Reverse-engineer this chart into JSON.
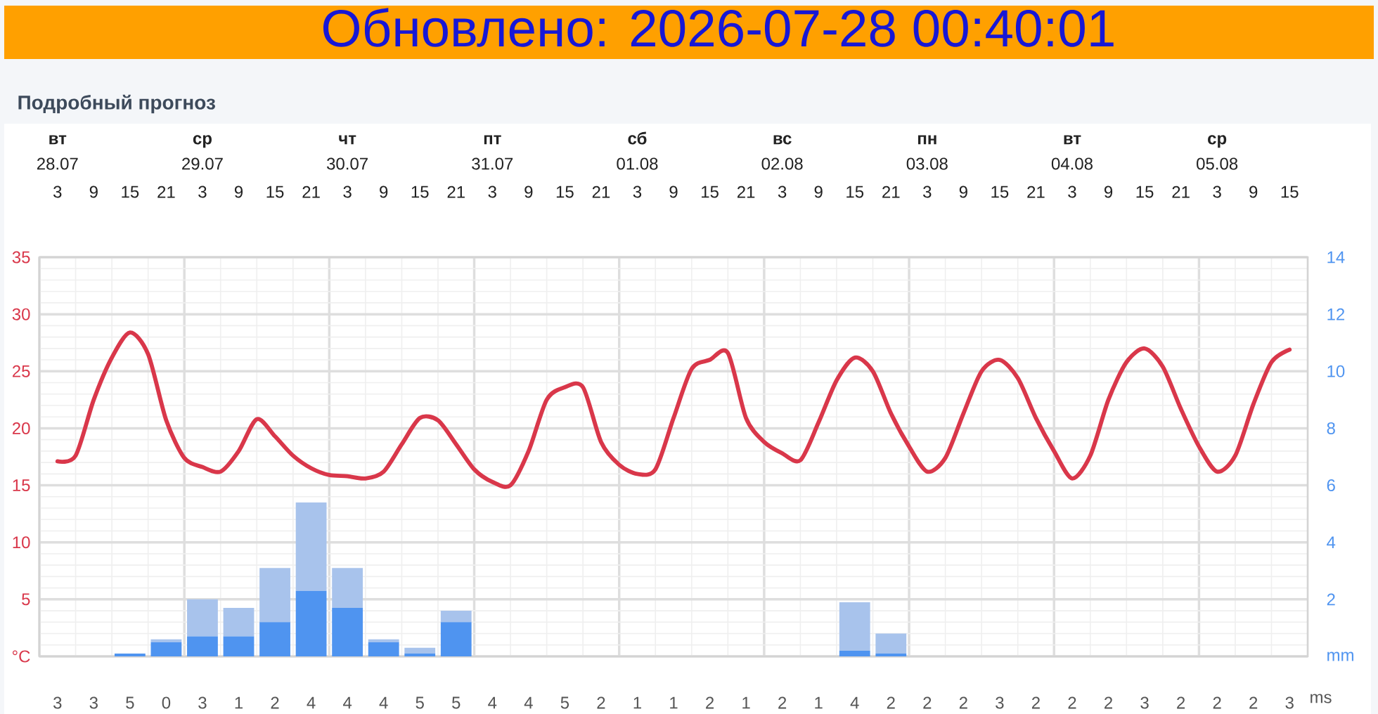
{
  "chart_data": [
    {
      "type": "line",
      "title": "Подробный прогноз",
      "annotations": [
        "Обновлено: 2026-07-28 00:40:01"
      ],
      "x": [
        "2026-07-28T03:00",
        "2026-07-28T09:00",
        "2026-07-28T15:00",
        "2026-07-28T21:00",
        "2026-07-29T03:00",
        "2026-07-29T09:00",
        "2026-07-29T15:00",
        "2026-07-29T21:00",
        "2026-07-30T03:00",
        "2026-07-30T09:00",
        "2026-07-30T15:00",
        "2026-07-30T21:00",
        "2026-07-31T03:00",
        "2026-07-31T09:00",
        "2026-07-31T15:00",
        "2026-07-31T21:00",
        "2026-08-01T03:00",
        "2026-08-01T09:00",
        "2026-08-01T15:00",
        "2026-08-01T21:00",
        "2026-08-02T03:00",
        "2026-08-02T09:00",
        "2026-08-02T15:00",
        "2026-08-02T21:00",
        "2026-08-03T03:00",
        "2026-08-03T09:00",
        "2026-08-03T15:00",
        "2026-08-03T21:00",
        "2026-08-04T03:00",
        "2026-08-04T09:00",
        "2026-08-04T15:00",
        "2026-08-04T21:00",
        "2026-08-05T03:00",
        "2026-08-05T09:00",
        "2026-08-05T15:00"
      ],
      "xlim": [
        "2026-07-28T00:00",
        "2026-08-05T18:00"
      ],
      "xticks": [
        {
          "value": "2026-07-28T03:00",
          "label": "3"
        },
        {
          "value": "2026-07-28T09:00",
          "label": "9"
        },
        {
          "value": "2026-07-28T15:00",
          "label": "15"
        },
        {
          "value": "2026-07-28T21:00",
          "label": "21"
        },
        {
          "value": "2026-07-29T03:00",
          "label": "3"
        },
        {
          "value": "2026-07-29T09:00",
          "label": "9"
        },
        {
          "value": "2026-07-29T15:00",
          "label": "15"
        },
        {
          "value": "2026-07-29T21:00",
          "label": "21"
        },
        {
          "value": "2026-07-30T03:00",
          "label": "3"
        },
        {
          "value": "2026-07-30T09:00",
          "label": "9"
        },
        {
          "value": "2026-07-30T15:00",
          "label": "15"
        },
        {
          "value": "2026-07-30T21:00",
          "label": "21"
        },
        {
          "value": "2026-07-31T03:00",
          "label": "3"
        },
        {
          "value": "2026-07-31T09:00",
          "label": "9"
        },
        {
          "value": "2026-07-31T15:00",
          "label": "15"
        },
        {
          "value": "2026-07-31T21:00",
          "label": "21"
        },
        {
          "value": "2026-08-01T03:00",
          "label": "3"
        },
        {
          "value": "2026-08-01T09:00",
          "label": "9"
        },
        {
          "value": "2026-08-01T15:00",
          "label": "15"
        },
        {
          "value": "2026-08-01T21:00",
          "label": "21"
        },
        {
          "value": "2026-08-02T03:00",
          "label": "3"
        },
        {
          "value": "2026-08-02T09:00",
          "label": "9"
        },
        {
          "value": "2026-08-02T15:00",
          "label": "15"
        },
        {
          "value": "2026-08-02T21:00",
          "label": "21"
        },
        {
          "value": "2026-08-03T03:00",
          "label": "3"
        },
        {
          "value": "2026-08-03T09:00",
          "label": "9"
        },
        {
          "value": "2026-08-03T15:00",
          "label": "15"
        },
        {
          "value": "2026-08-03T21:00",
          "label": "21"
        },
        {
          "value": "2026-08-04T03:00",
          "label": "3"
        },
        {
          "value": "2026-08-04T09:00",
          "label": "9"
        },
        {
          "value": "2026-08-04T15:00",
          "label": "15"
        },
        {
          "value": "2026-08-04T21:00",
          "label": "21"
        },
        {
          "value": "2026-08-05T03:00",
          "label": "3"
        },
        {
          "value": "2026-08-05T09:00",
          "label": "9"
        },
        {
          "value": "2026-08-05T15:00",
          "label": "15"
        }
      ],
      "x2lim": [
        "2026-07-28T00:00",
        "2026-08-05T18:00"
      ],
      "x2ticks": [
        {
          "value": "2026-07-28T03:00",
          "label": "**вт** 28.07"
        },
        {
          "value": "2026-07-29T03:00",
          "label": "**ср** 29.07"
        },
        {
          "value": "2026-07-30T03:00",
          "label": "**чт** 30.07"
        },
        {
          "value": "2026-07-31T03:00",
          "label": "**пт** 31.07"
        },
        {
          "value": "2026-08-01T03:00",
          "label": "**сб** 01.08"
        },
        {
          "value": "2026-08-02T03:00",
          "label": "**вс** 02.08"
        },
        {
          "value": "2026-08-03T03:00",
          "label": "**пн** 03.08"
        },
        {
          "value": "2026-08-04T03:00",
          "label": "**вт** 04.08"
        },
        {
          "value": "2026-08-05T03:00",
          "label": "**ср** 05.08"
        }
      ],
      "ylim": [
        0,
        35
      ],
      "yticks": [
        {
          "value": 0,
          "label": "°C"
        },
        5,
        10,
        15,
        20,
        25,
        30,
        35
      ],
      "y2lim": [
        0,
        14
      ],
      "y2ticks": [
        {
          "value": 0,
          "label": "mm"
        },
        2,
        4,
        6,
        8,
        10,
        12,
        14
      ],
      "stacked": true,
      "grid": true,
      "series": [
        {
          "type": "line",
          "color": "#d9374a",
          "x": [
            "2026-07-28T03:00",
            "2026-07-28T06:00",
            "2026-07-28T09:00",
            "2026-07-28T12:00",
            "2026-07-28T15:00",
            "2026-07-28T18:00",
            "2026-07-28T21:00",
            "2026-07-29T00:00",
            "2026-07-29T03:00",
            "2026-07-29T06:00",
            "2026-07-29T09:00",
            "2026-07-29T12:00",
            "2026-07-29T15:00",
            "2026-07-29T18:00",
            "2026-07-29T21:00",
            "2026-07-30T00:00",
            "2026-07-30T03:00",
            "2026-07-30T06:00",
            "2026-07-30T09:00",
            "2026-07-30T12:00",
            "2026-07-30T15:00",
            "2026-07-30T18:00",
            "2026-07-30T21:00",
            "2026-07-31T00:00",
            "2026-07-31T03:00",
            "2026-07-31T06:00",
            "2026-07-31T09:00",
            "2026-07-31T12:00",
            "2026-07-31T15:00",
            "2026-07-31T18:00",
            "2026-07-31T21:00",
            "2026-08-01T00:00",
            "2026-08-01T03:00",
            "2026-08-01T06:00",
            "2026-08-01T09:00",
            "2026-08-01T12:00",
            "2026-08-01T15:00",
            "2026-08-01T18:00",
            "2026-08-01T21:00",
            "2026-08-02T00:00",
            "2026-08-02T03:00",
            "2026-08-02T06:00",
            "2026-08-02T09:00",
            "2026-08-02T12:00",
            "2026-08-02T15:00",
            "2026-08-02T18:00",
            "2026-08-02T21:00",
            "2026-08-03T00:00",
            "2026-08-03T03:00",
            "2026-08-03T06:00",
            "2026-08-03T09:00",
            "2026-08-03T12:00",
            "2026-08-03T15:00",
            "2026-08-03T18:00",
            "2026-08-03T21:00",
            "2026-08-04T00:00",
            "2026-08-04T03:00",
            "2026-08-04T06:00",
            "2026-08-04T09:00",
            "2026-08-04T12:00",
            "2026-08-04T15:00",
            "2026-08-04T18:00",
            "2026-08-04T21:00",
            "2026-08-05T00:00",
            "2026-08-05T03:00",
            "2026-08-05T06:00",
            "2026-08-05T09:00",
            "2026-08-05T12:00",
            "2026-08-05T15:00"
          ],
          "values": [
            17.1,
            17.6,
            22.5,
            26.2,
            28.4,
            26.5,
            20.7,
            17.4,
            16.6,
            16.2,
            18.0,
            20.8,
            19.3,
            17.6,
            16.5,
            15.9,
            15.8,
            15.6,
            16.2,
            18.6,
            20.9,
            20.7,
            18.6,
            16.4,
            15.3,
            15.0,
            18.0,
            22.5,
            23.6,
            23.6,
            18.8,
            16.8,
            16.0,
            16.4,
            20.9,
            25.2,
            26.0,
            26.6,
            20.9,
            18.8,
            17.8,
            17.2,
            20.5,
            24.2,
            26.2,
            25.0,
            21.3,
            18.4,
            16.2,
            17.4,
            21.3,
            25.0,
            26.0,
            24.4,
            20.9,
            18.0,
            15.6,
            17.6,
            22.5,
            25.8,
            27.0,
            25.4,
            21.7,
            18.4,
            16.2,
            17.6,
            22.1,
            25.8,
            26.9
          ]
        },
        {
          "type": "bar",
          "axis": "y2",
          "color": "#4f94f0",
          "values": [
            0,
            0,
            0.1,
            0.5,
            0.7,
            0.7,
            1.2,
            2.3,
            1.7,
            0.5,
            0.1,
            1.2,
            0,
            0,
            0,
            0,
            0,
            0,
            0,
            0,
            0,
            0,
            0.2,
            0.1,
            0,
            0,
            0,
            0,
            0,
            0,
            0,
            0,
            0,
            0,
            0
          ]
        },
        {
          "type": "bar",
          "axis": "y2",
          "color": "#a8c3ec",
          "values": [
            0,
            0,
            0,
            0.1,
            1.3,
            1.0,
            1.9,
            3.1,
            1.4,
            0.1,
            0.2,
            0.4,
            0,
            0,
            0,
            0,
            0,
            0,
            0,
            0,
            0,
            0,
            1.7,
            0.7,
            0,
            0,
            0,
            0,
            0,
            0,
            0,
            0,
            0,
            0,
            0
          ]
        }
      ]
    },
    {
      "type": "other",
      "categories": [
        null,
        null,
        null,
        null,
        null,
        null,
        null,
        null,
        null,
        null,
        null,
        null,
        null,
        null,
        null,
        null,
        null,
        null,
        null,
        null,
        null,
        null,
        null,
        null,
        null,
        null,
        null,
        null,
        null,
        null,
        null,
        null,
        null,
        null,
        null
      ],
      "values": [
        3,
        3,
        5,
        0,
        3,
        1,
        2,
        4,
        4,
        4,
        5,
        5,
        4,
        4,
        5,
        2,
        1,
        1,
        2,
        1,
        2,
        1,
        4,
        2,
        2,
        2,
        3,
        2,
        2,
        2,
        3,
        2,
        2,
        2,
        3
      ],
      "data_labels": true,
      "annotations": [
        "ms"
      ]
    }
  ]
}
